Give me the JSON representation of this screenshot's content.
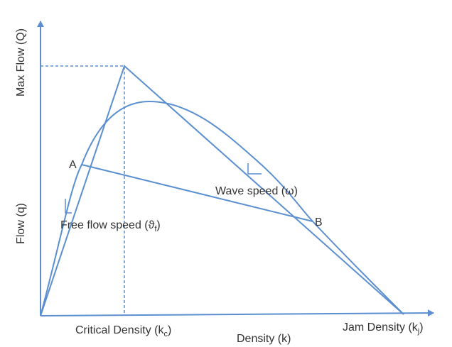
{
  "axes": {
    "y_top": "Max Flow (Q)",
    "y_mid": "Flow (q)",
    "x_mid": "Density (k)"
  },
  "points": {
    "a": "A",
    "b": "B"
  },
  "labels": {
    "wave_speed": "Wave speed (ω)",
    "free_flow": {
      "main": "Free flow speed (ϑ",
      "sub": "f",
      "end": ")"
    },
    "critical": {
      "main": "Critical Density (k",
      "sub": "c",
      "end": ")"
    },
    "jam": {
      "main": "Jam Density (k",
      "sub": "j",
      "end": ")"
    }
  }
}
